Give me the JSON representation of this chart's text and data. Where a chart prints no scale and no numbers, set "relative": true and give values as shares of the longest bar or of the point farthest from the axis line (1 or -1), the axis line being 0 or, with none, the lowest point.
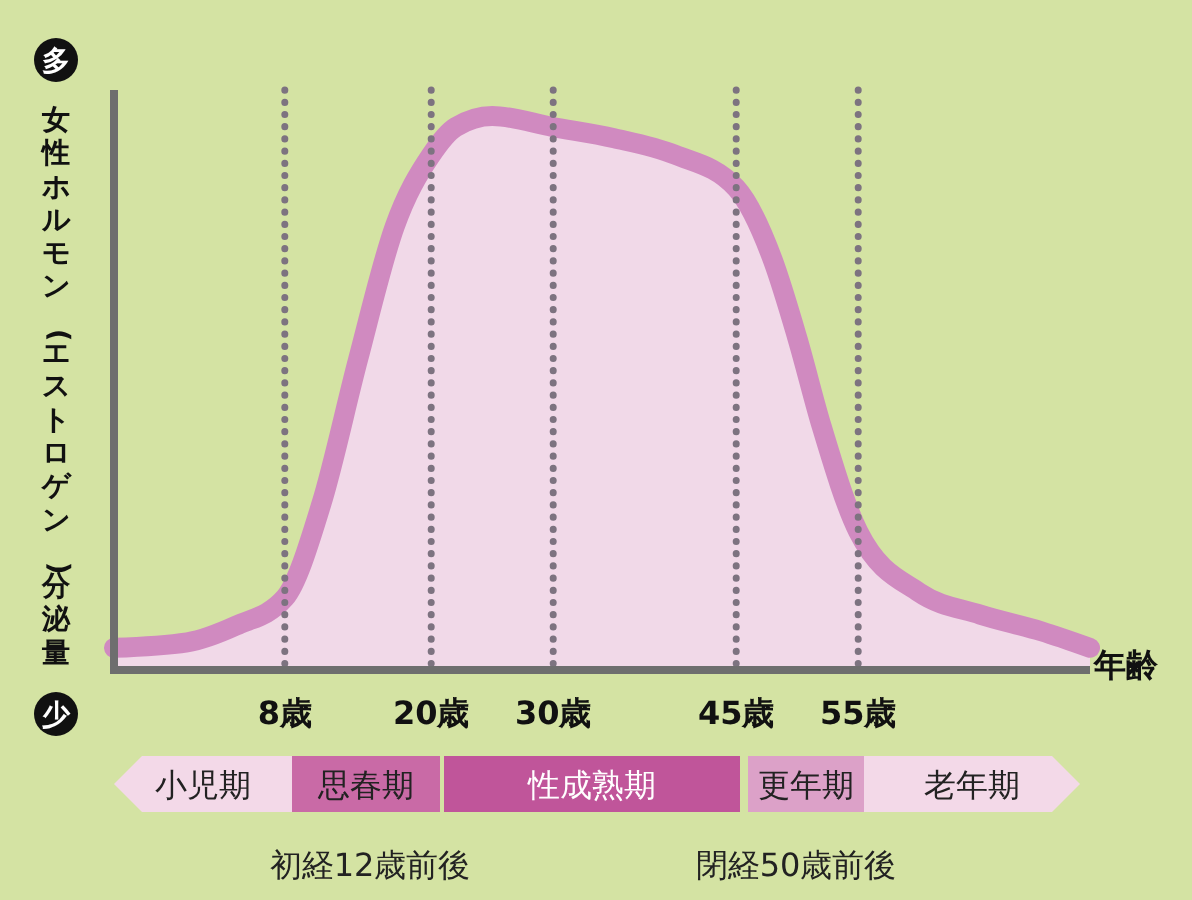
{
  "chart_data": {
    "type": "area",
    "relative": true,
    "ylabel": "女性ホルモン(エストロゲン)分泌量",
    "xlabel": "年齢",
    "xlim": [
      -6,
      74
    ],
    "xticks": [
      {
        "value": 8,
        "label": "8歳"
      },
      {
        "value": 20,
        "label": "20歳"
      },
      {
        "value": 30,
        "label": "30歳"
      },
      {
        "value": 45,
        "label": "45歳"
      },
      {
        "value": 55,
        "label": "55歳"
      }
    ],
    "series": [
      {
        "color": "#d08ac0",
        "x": [
          -6,
          0,
          4,
          8,
          11,
          14,
          17,
          20,
          22,
          25,
          30,
          35,
          40,
          45,
          48,
          50,
          52,
          55,
          60,
          65,
          70,
          74
        ],
        "values": [
          0.04,
          0.05,
          0.08,
          0.13,
          0.3,
          0.56,
          0.8,
          0.93,
          0.98,
          1,
          0.98,
          0.96,
          0.93,
          0.87,
          0.74,
          0.6,
          0.44,
          0.25,
          0.14,
          0.1,
          0.07,
          0.04
        ]
      }
    ],
    "ref_lines": [
      {
        "axis": "x",
        "value": 8,
        "color": "#7d7380",
        "line_style": "dotted"
      },
      {
        "axis": "x",
        "value": 20,
        "color": "#7d7380",
        "line_style": "dotted"
      },
      {
        "axis": "x",
        "value": 30,
        "color": "#7d7380",
        "line_style": "dotted"
      },
      {
        "axis": "x",
        "value": 45,
        "color": "#7d7380",
        "line_style": "dotted"
      },
      {
        "axis": "x",
        "value": 55,
        "color": "#7d7380",
        "line_style": "dotted"
      }
    ],
    "annotations": [
      "多",
      "少",
      "小児期",
      "思春期",
      "性成熟期",
      "更年期",
      "老年期",
      "初経12歳前後",
      "閉経50歳前後"
    ]
  }
}
